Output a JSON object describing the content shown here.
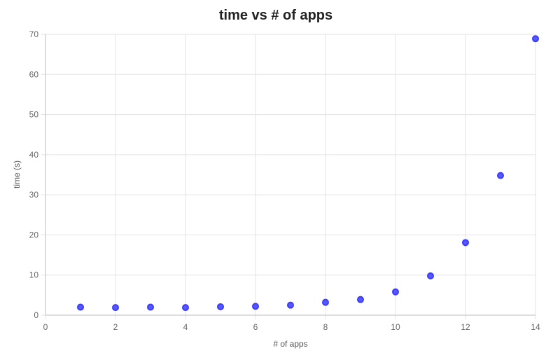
{
  "chart_data": {
    "type": "scatter",
    "title": "time vs # of apps",
    "xlabel": "# of apps",
    "ylabel": "time (s)",
    "xlim": [
      0,
      14
    ],
    "ylim": [
      0,
      70
    ],
    "x_ticks": [
      "0",
      "2",
      "4",
      "6",
      "8",
      "10",
      "12",
      "14"
    ],
    "y_ticks": [
      "0",
      "10",
      "20",
      "30",
      "40",
      "50",
      "60",
      "70"
    ],
    "grid": true,
    "legend": "none",
    "point_color": "#3b3bff",
    "points": [
      {
        "x": 1,
        "y": 2.0
      },
      {
        "x": 2,
        "y": 1.9
      },
      {
        "x": 3,
        "y": 2.0
      },
      {
        "x": 4,
        "y": 1.9
      },
      {
        "x": 5,
        "y": 2.1
      },
      {
        "x": 6,
        "y": 2.2
      },
      {
        "x": 7,
        "y": 2.5
      },
      {
        "x": 8,
        "y": 3.2
      },
      {
        "x": 9,
        "y": 3.9
      },
      {
        "x": 10,
        "y": 5.8
      },
      {
        "x": 11,
        "y": 9.8
      },
      {
        "x": 12,
        "y": 18.1
      },
      {
        "x": 13,
        "y": 34.8
      },
      {
        "x": 14,
        "y": 68.9
      }
    ]
  }
}
